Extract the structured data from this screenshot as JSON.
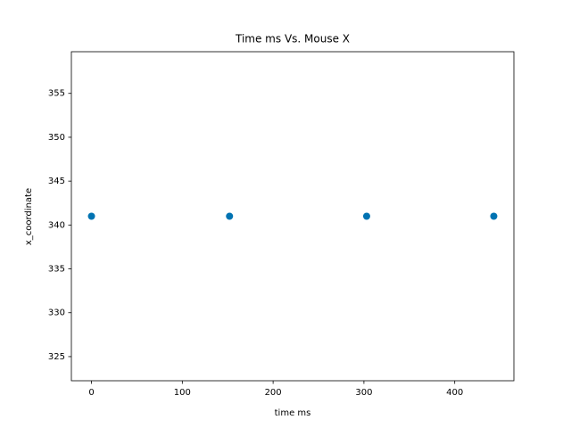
{
  "chart_data": {
    "type": "scatter",
    "title": "Time ms Vs. Mouse X",
    "x_label": "time ms",
    "y_label": "x_coordinate",
    "x": [
      0,
      152,
      303,
      443
    ],
    "values": [
      341,
      341,
      341,
      341
    ],
    "color": "#0173b2",
    "xlim": [
      -22.15,
      465.15
    ],
    "xticks": [
      0,
      100,
      200,
      300,
      400
    ],
    "ylim": [
      322.25,
      359.75
    ],
    "yticks": [
      325,
      330,
      335,
      340,
      345,
      350,
      355
    ],
    "grid": false
  }
}
